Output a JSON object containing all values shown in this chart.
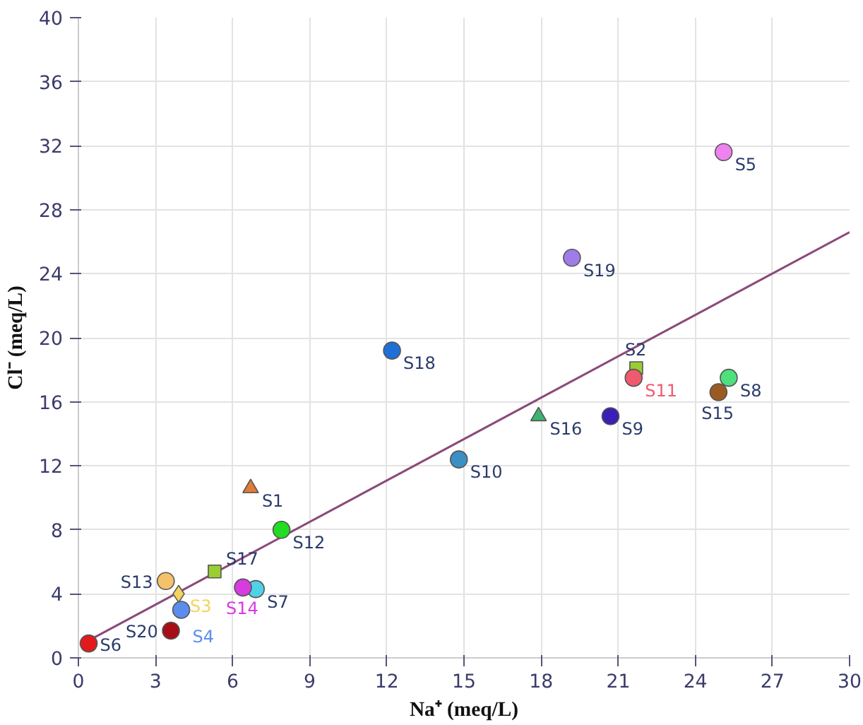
{
  "chart_data": {
    "type": "scatter",
    "xlabel": "Na⁺ (meq/L)",
    "ylabel": "Cl⁻ (meq/L)",
    "xlim": [
      0,
      30
    ],
    "ylim": [
      0,
      40
    ],
    "xticks": [
      0,
      3,
      6,
      9,
      12,
      15,
      18,
      21,
      24,
      27,
      30
    ],
    "yticks": [
      0,
      4,
      8,
      12,
      16,
      20,
      24,
      28,
      32,
      36,
      40
    ],
    "grid": true,
    "series": [
      {
        "name": "S1",
        "color": "#e07b39",
        "marker": "triangle",
        "x": [
          6.7
        ],
        "values": [
          10.6
        ]
      },
      {
        "name": "S2",
        "color": "#9acd32",
        "marker": "square",
        "x": [
          21.7
        ],
        "values": [
          18.1
        ]
      },
      {
        "name": "S3",
        "color": "#f4d35e",
        "marker": "diamond",
        "x": [
          3.9
        ],
        "values": [
          4.0
        ]
      },
      {
        "name": "S4",
        "color": "#5b8def",
        "marker": "circle",
        "x": [
          4.0
        ],
        "values": [
          3.0
        ]
      },
      {
        "name": "S5",
        "color": "#ee82ee",
        "marker": "circle",
        "x": [
          25.1
        ],
        "values": [
          31.6
        ]
      },
      {
        "name": "S6",
        "color": "#e31a1c",
        "marker": "circle",
        "x": [
          0.4
        ],
        "values": [
          0.9
        ]
      },
      {
        "name": "S7",
        "color": "#4fd1e8",
        "marker": "circle",
        "x": [
          6.9
        ],
        "values": [
          4.3
        ]
      },
      {
        "name": "S8",
        "color": "#4ee07a",
        "marker": "circle",
        "x": [
          25.3
        ],
        "values": [
          17.5
        ]
      },
      {
        "name": "S9",
        "color": "#3b1fb5",
        "marker": "circle",
        "x": [
          20.7
        ],
        "values": [
          15.1
        ]
      },
      {
        "name": "S10",
        "color": "#3a8fc4",
        "marker": "circle",
        "x": [
          14.8
        ],
        "values": [
          12.4
        ]
      },
      {
        "name": "S11",
        "color": "#f05a6e",
        "marker": "circle",
        "x": [
          21.6
        ],
        "values": [
          17.5
        ]
      },
      {
        "name": "S12",
        "color": "#22dd22",
        "marker": "circle",
        "x": [
          7.9
        ],
        "values": [
          8.0
        ]
      },
      {
        "name": "S13",
        "color": "#f4c26b",
        "marker": "circle",
        "x": [
          3.4
        ],
        "values": [
          4.8
        ]
      },
      {
        "name": "S14",
        "color": "#d63ce0",
        "marker": "circle",
        "x": [
          6.4
        ],
        "values": [
          4.4
        ]
      },
      {
        "name": "S15",
        "color": "#9b5a23",
        "marker": "circle",
        "x": [
          24.9
        ],
        "values": [
          16.6
        ]
      },
      {
        "name": "S16",
        "color": "#3cb371",
        "marker": "triangle",
        "x": [
          17.9
        ],
        "values": [
          15.1
        ]
      },
      {
        "name": "S17",
        "color": "#9acd32",
        "marker": "square",
        "x": [
          5.3
        ],
        "values": [
          5.4
        ]
      },
      {
        "name": "S18",
        "color": "#1f6fd9",
        "marker": "circle",
        "x": [
          12.2
        ],
        "values": [
          19.2
        ]
      },
      {
        "name": "S19",
        "color": "#a07ce8",
        "marker": "circle",
        "x": [
          19.2
        ],
        "values": [
          25.0
        ]
      },
      {
        "name": "S20",
        "color": "#a50f15",
        "marker": "circle",
        "x": [
          3.6
        ],
        "values": [
          1.7
        ]
      },
      {
        "type": "line",
        "color": "#8b4a7a",
        "marker": "none",
        "x": [
          0.3,
          30
        ],
        "values": [
          1.0,
          26.6
        ]
      }
    ]
  }
}
